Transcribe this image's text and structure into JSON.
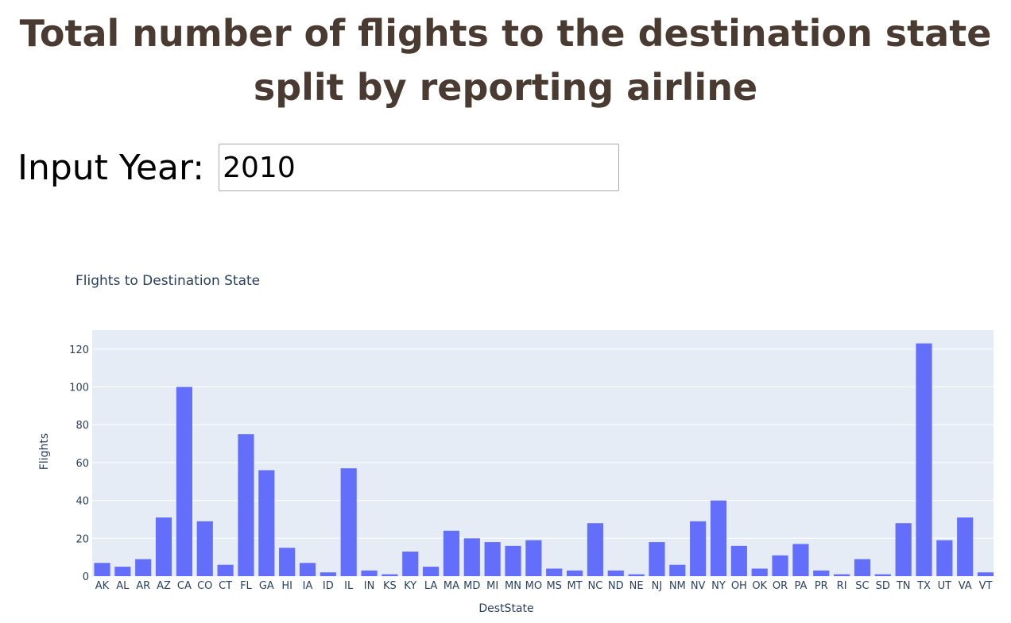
{
  "page": {
    "title": "Total number of flights to the destination state split by reporting airline"
  },
  "year_input": {
    "label": "Input Year:",
    "value": "2010"
  },
  "colors": {
    "bar": "#636efa",
    "plot_bg": "#e5ecf6",
    "grid": "#ffffff",
    "title_text": "#4a3b32",
    "axis_text": "#2a3f5f"
  },
  "chart_data": {
    "type": "bar",
    "title": "Flights to Destination State",
    "xlabel": "DestState",
    "ylabel": "Flights",
    "ylim": [
      0,
      130
    ],
    "yticks": [
      0,
      20,
      40,
      60,
      80,
      100,
      120
    ],
    "grid": true,
    "categories": [
      "AK",
      "AL",
      "AR",
      "AZ",
      "CA",
      "CO",
      "CT",
      "FL",
      "GA",
      "HI",
      "IA",
      "ID",
      "IL",
      "IN",
      "KS",
      "KY",
      "LA",
      "MA",
      "MD",
      "MI",
      "MN",
      "MO",
      "MS",
      "MT",
      "NC",
      "ND",
      "NE",
      "NJ",
      "NM",
      "NV",
      "NY",
      "OH",
      "OK",
      "OR",
      "PA",
      "PR",
      "RI",
      "SC",
      "SD",
      "TN",
      "TX",
      "UT",
      "VA",
      "VT"
    ],
    "values": [
      7,
      5,
      9,
      31,
      100,
      29,
      6,
      75,
      56,
      15,
      7,
      2,
      57,
      3,
      1,
      13,
      5,
      24,
      20,
      18,
      16,
      19,
      4,
      3,
      28,
      3,
      1,
      18,
      6,
      29,
      40,
      16,
      4,
      11,
      17,
      3,
      1,
      9,
      1,
      28,
      123,
      19,
      31,
      2
    ]
  }
}
